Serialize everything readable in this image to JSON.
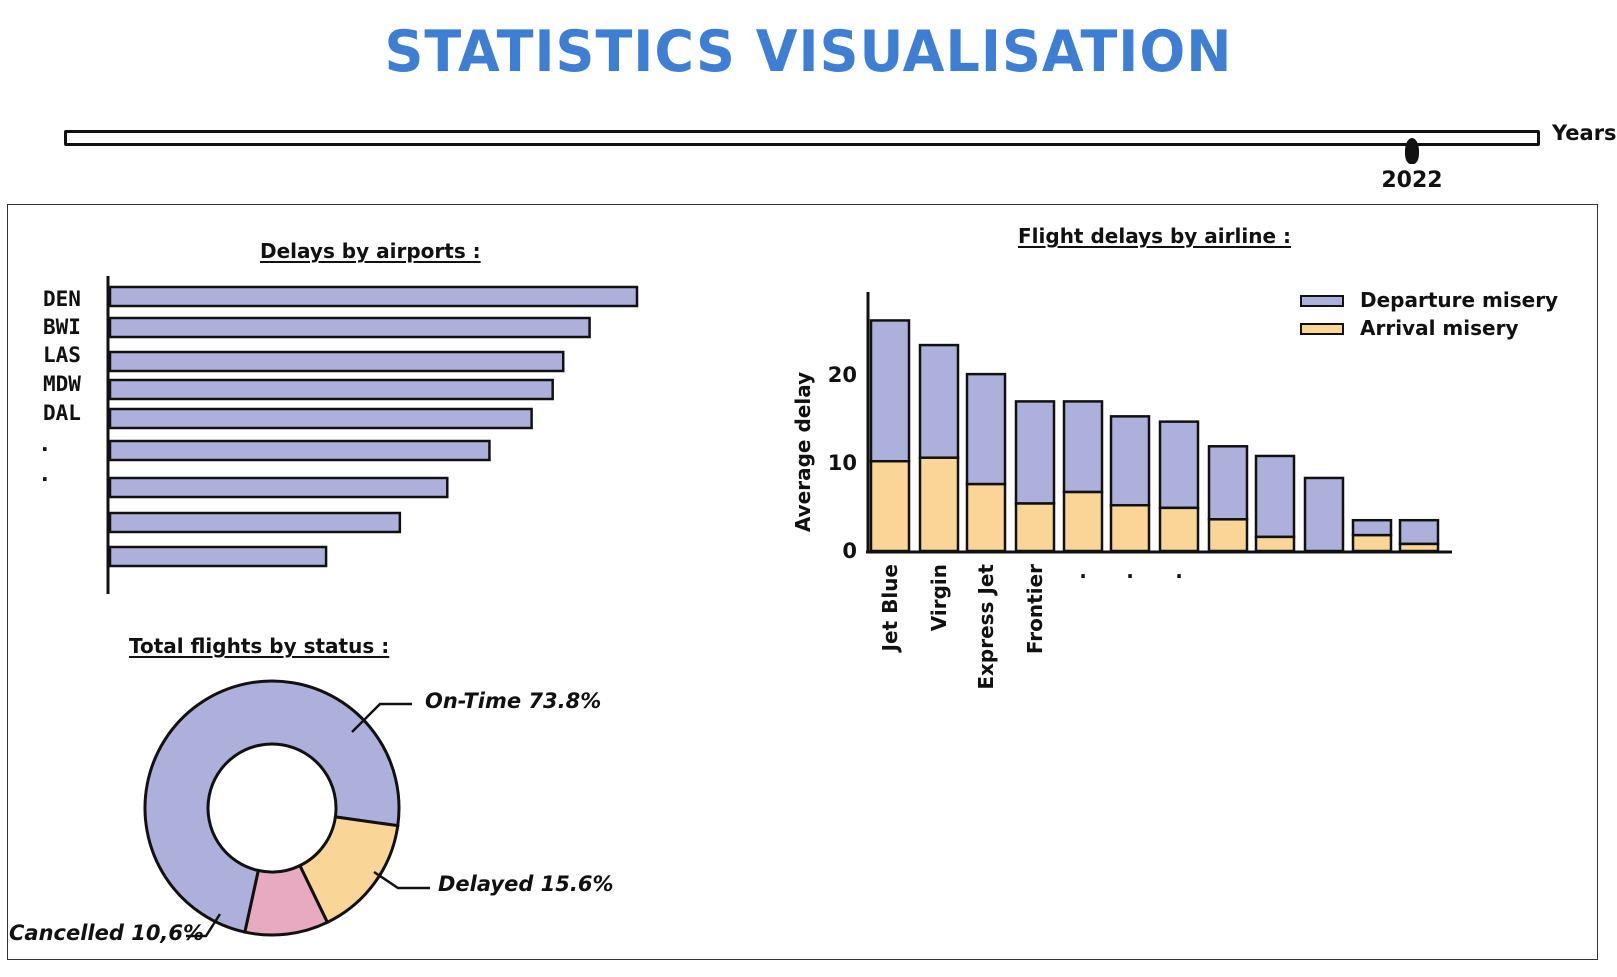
{
  "title": "STATISTICS VISUALISATION",
  "timeline": {
    "axis_label": "Years",
    "selected_value": "2022"
  },
  "colors": {
    "title": "#3f7fd3",
    "departure": "#aeb0dc",
    "arrival": "#f9d698",
    "cancelled": "#e8aac0",
    "outline": "#111111"
  },
  "airports": {
    "title": "Delays by airports :",
    "labels": [
      "DEN",
      "BWI",
      "LAS",
      "MDW",
      "DAL",
      ".",
      "."
    ]
  },
  "airlines": {
    "title": "Flight delays by airline :",
    "ylabel": "Average delay",
    "legend": [
      "Departure misery",
      "Arrival misery"
    ]
  },
  "status": {
    "title": "Total flights by status :",
    "labels": {
      "ontime": "On-Time 73.8%",
      "delayed": "Delayed 15.6%",
      "cancelled": "Cancelled 10,6%"
    }
  },
  "chart_data": [
    {
      "type": "bar",
      "orientation": "horizontal",
      "title": "Delays by airports :",
      "categories": [
        "DEN",
        "BWI",
        "LAS",
        "MDW",
        "DAL",
        ".",
        ".",
        "",
        ""
      ],
      "values": [
        100,
        91,
        86,
        84,
        80,
        72,
        64,
        55,
        41
      ]
    },
    {
      "type": "bar",
      "stacked": true,
      "title": "Flight delays by airline :",
      "ylabel": "Average delay",
      "categories": [
        "Jet Blue",
        "Virgin",
        "Express Jet",
        "Frontier",
        ".",
        ".",
        ".",
        "",
        "",
        "",
        "",
        ""
      ],
      "yticks": [
        0,
        10,
        20
      ],
      "ylim": [
        0,
        29
      ],
      "series": [
        {
          "name": "Arrival misery",
          "values": [
            10.2,
            10.6,
            7.6,
            5.4,
            6.7,
            5.2,
            4.9,
            3.6,
            1.6,
            0,
            1.8,
            0.8
          ]
        },
        {
          "name": "Departure misery",
          "values": [
            16.0,
            12.8,
            12.5,
            11.6,
            10.3,
            10.1,
            9.8,
            8.3,
            9.2,
            8.3,
            1.7,
            2.7
          ]
        }
      ],
      "legend_position": "top-right"
    },
    {
      "type": "pie",
      "donut": true,
      "title": "Total flights by status :",
      "labels": [
        "On-Time",
        "Delayed",
        "Cancelled"
      ],
      "values": [
        73.8,
        15.6,
        10.6
      ]
    }
  ]
}
